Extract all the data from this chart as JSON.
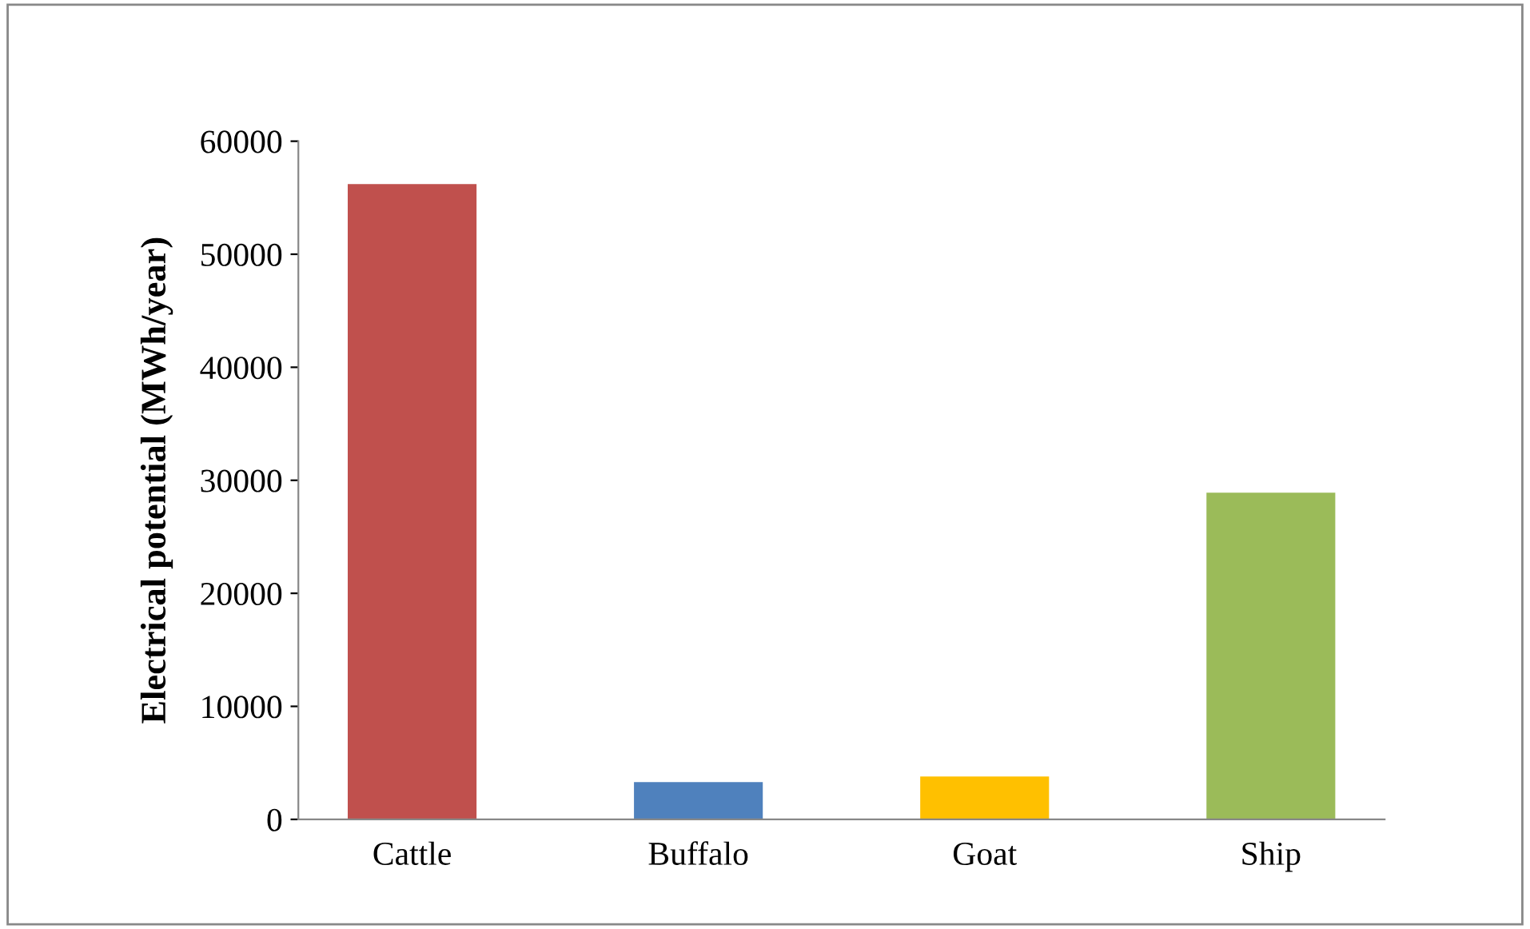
{
  "chart_data": {
    "type": "bar",
    "ylabel": "Electrical potential (MWh/year)",
    "categories": [
      "Cattle",
      "Buffalo",
      "Goat",
      "Ship"
    ],
    "values": [
      56200,
      3300,
      3800,
      28900
    ],
    "colors": [
      "#c0504d",
      "#4f81bd",
      "#ffc000",
      "#9bbb59"
    ],
    "ylim": [
      0,
      60000
    ],
    "yticks": [
      0,
      10000,
      20000,
      30000,
      40000,
      50000,
      60000
    ],
    "grid": false
  }
}
